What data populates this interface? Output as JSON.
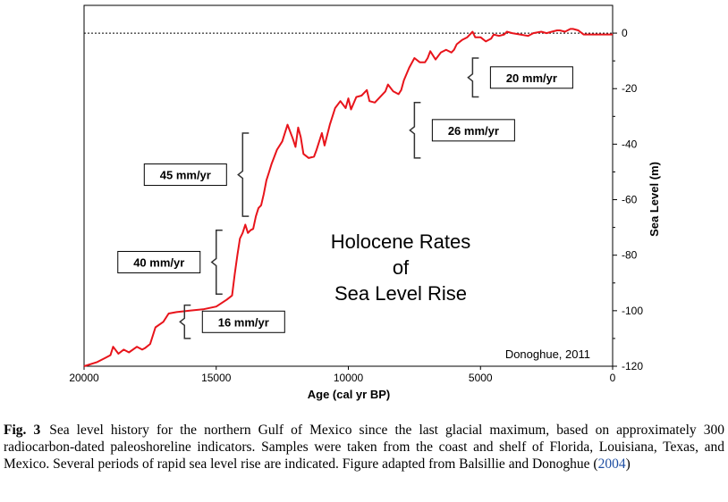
{
  "chart_data": {
    "type": "line",
    "title": "Holocene Rates of Sea Level Rise",
    "title_lines": [
      "Holocene Rates",
      "of",
      "Sea Level Rise"
    ],
    "xlabel": "Age (cal yr BP)",
    "ylabel": "Sea Level (m)",
    "xlim": [
      20000,
      0
    ],
    "ylim": [
      -120,
      10
    ],
    "x_ticks": [
      20000,
      15000,
      10000,
      5000,
      0
    ],
    "y_ticks": [
      0,
      -20,
      -40,
      -60,
      -80,
      -100,
      -120
    ],
    "y_axis_side": "right",
    "reference_line": {
      "y": 0,
      "style": "dotted"
    },
    "credit": "Donoghue, 2011",
    "series": [
      {
        "color": "#e8141b",
        "x": [
          20000,
          19500,
          19200,
          19000,
          18900,
          18700,
          18500,
          18300,
          18000,
          17800,
          17700,
          17500,
          17300,
          17000,
          16800,
          16500,
          16000,
          15500,
          15000,
          14600,
          14400,
          14300,
          14200,
          14100,
          14000,
          13900,
          13800,
          13700,
          13600,
          13500,
          13400,
          13300,
          13200,
          13100,
          13000,
          12900,
          12700,
          12500,
          12300,
          12100,
          12000,
          11900,
          11800,
          11700,
          11500,
          11300,
          11200,
          11000,
          10900,
          10700,
          10500,
          10300,
          10100,
          10000,
          9900,
          9700,
          9500,
          9300,
          9200,
          9000,
          8800,
          8600,
          8500,
          8300,
          8100,
          8000,
          7900,
          7700,
          7500,
          7300,
          7100,
          7000,
          6900,
          6700,
          6500,
          6300,
          6100,
          6000,
          5900,
          5700,
          5500,
          5300,
          5200,
          5000,
          4800,
          4600,
          4500,
          4300,
          4100,
          4000,
          3800,
          3500,
          3200,
          3000,
          2700,
          2500,
          2300,
          2100,
          2000,
          1800,
          1600,
          1500,
          1300,
          1100,
          1000,
          700,
          400,
          200,
          0
        ],
        "y": [
          -120,
          -118.5,
          -117,
          -116,
          -113,
          -115.5,
          -114,
          -115,
          -113,
          -114,
          -113.5,
          -112,
          -106,
          -104,
          -101,
          -100.5,
          -100,
          -99.5,
          -98.5,
          -96,
          -94.5,
          -87,
          -80,
          -74,
          -72,
          -69,
          -72,
          -71,
          -70.5,
          -66,
          -63,
          -62,
          -58,
          -53,
          -50,
          -47,
          -42,
          -39,
          -33,
          -38,
          -41,
          -34,
          -37.5,
          -43.5,
          -45,
          -44.5,
          -42,
          -36,
          -40.5,
          -33,
          -27,
          -24.5,
          -27,
          -23.5,
          -27.5,
          -23,
          -22.5,
          -20.5,
          -24.5,
          -25,
          -23,
          -21,
          -18.5,
          -21,
          -22,
          -20.5,
          -17,
          -12.5,
          -9,
          -10.5,
          -10.5,
          -9,
          -6.5,
          -9.5,
          -7,
          -6,
          -7,
          -6,
          -4,
          -2.5,
          -1.5,
          0.5,
          -1.5,
          -1.5,
          -3,
          -2,
          -0.5,
          -1,
          -0.5,
          0.5,
          0,
          -0.5,
          -1,
          0,
          0.5,
          0,
          0.5,
          1,
          1,
          0.5,
          1.5,
          1.5,
          1,
          -0.5,
          -0.5,
          -0.5,
          -0.5,
          -0.5,
          -0.5
        ]
      }
    ],
    "annotations": [
      {
        "label": "16 mm/yr",
        "x_range": [
          16800,
          16200
        ],
        "y_range": [
          -110,
          -98
        ]
      },
      {
        "label": "40 mm/yr",
        "x_range": [
          16000,
          15000
        ],
        "y_range": [
          -94,
          -71
        ]
      },
      {
        "label": "45 mm/yr",
        "x_range": [
          14500,
          14000
        ],
        "y_range": [
          -66,
          -36
        ]
      },
      {
        "label": "26 mm/yr",
        "x_range": [
          8500,
          7500
        ],
        "y_range": [
          -45,
          -25
        ]
      },
      {
        "label": "20 mm/yr",
        "x_range": [
          6200,
          5300
        ],
        "y_range": [
          -23,
          -9
        ]
      }
    ]
  },
  "caption": {
    "fig_label": "Fig. 3",
    "text": "Sea level history for the northern Gulf of Mexico since the last glacial maximum, based on approximately 300 radiocarbon-dated paleoshoreline indicators. Samples were taken from the coast and shelf of Florida, Louisiana, Texas, and Mexico. Several periods of rapid sea level rise are indicated. Figure adapted from Balsillie and Donoghue (",
    "cite": "2004",
    "text_end": ")"
  }
}
